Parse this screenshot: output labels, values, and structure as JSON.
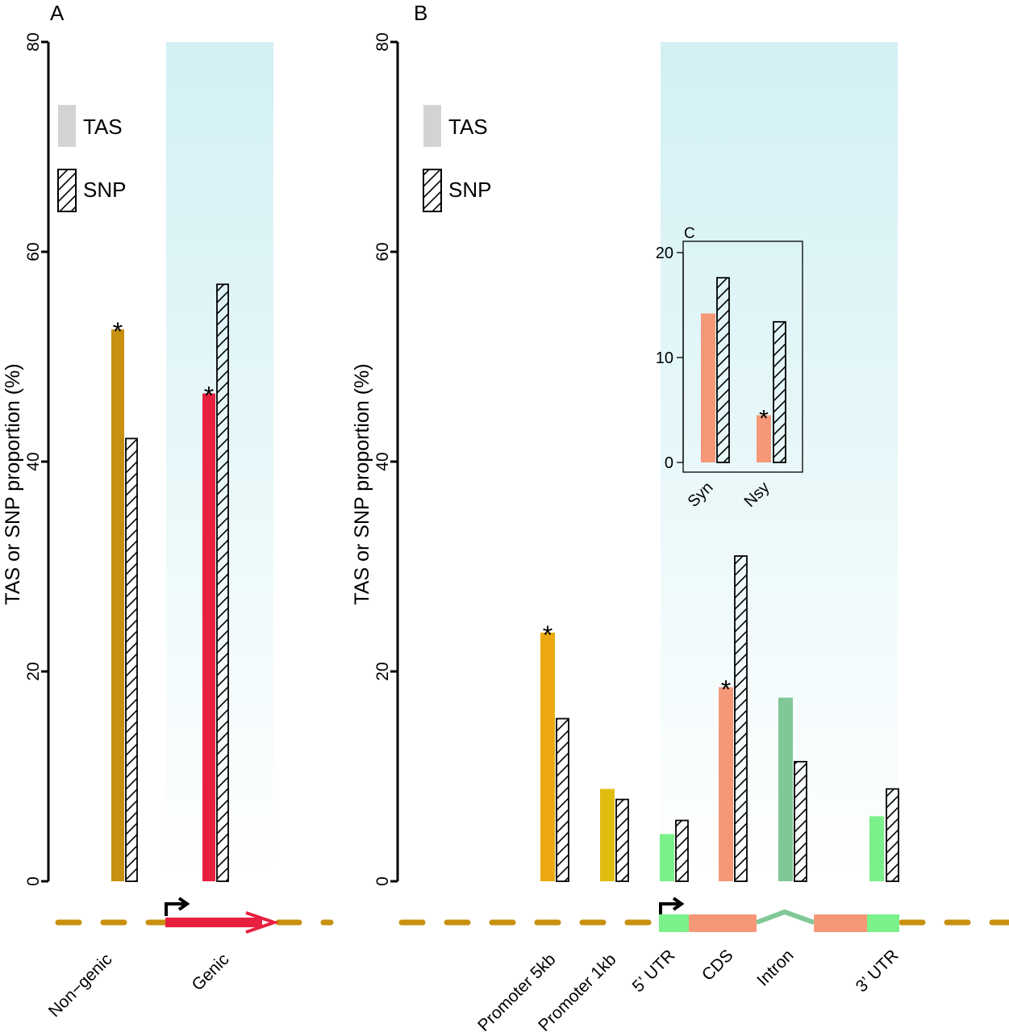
{
  "chart_data": [
    {
      "panel": "A",
      "type": "bar",
      "ylabel": "TAS or SNP proportion (%)",
      "ylim": [
        0,
        80
      ],
      "yticks": [
        "0",
        "20",
        "40",
        "60",
        "80"
      ],
      "legend": [
        "TAS",
        "SNP"
      ],
      "legend_placement": "top-left",
      "categories": [
        "Non−genic",
        "Genic"
      ],
      "series": [
        {
          "name": "TAS",
          "values": [
            52.6,
            46.5
          ],
          "colors": [
            "#C8900F",
            "#E8203F"
          ],
          "significant": [
            true,
            true
          ]
        },
        {
          "name": "SNP",
          "values": [
            42.2,
            56.9
          ],
          "pattern": "hatched"
        }
      ],
      "shaded_categories": [
        "Genic"
      ]
    },
    {
      "panel": "B",
      "type": "bar",
      "ylabel": "TAS or SNP proportion (%)",
      "ylim": [
        0,
        80
      ],
      "yticks": [
        "0",
        "20",
        "40",
        "60",
        "80"
      ],
      "legend": [
        "TAS",
        "SNP"
      ],
      "legend_placement": "top-left",
      "categories": [
        "Promoter 5kb",
        "Promoter 1kb",
        "5’ UTR",
        "CDS",
        "Intron",
        "3’ UTR"
      ],
      "series": [
        {
          "name": "TAS",
          "values": [
            23.7,
            8.8,
            4.5,
            18.5,
            17.5,
            6.2
          ],
          "colors": [
            "#EBA810",
            "#E0BE10",
            "#7CF08A",
            "#F59878",
            "#80C898",
            "#7CF08A"
          ],
          "significant": [
            true,
            false,
            false,
            true,
            false,
            false
          ]
        },
        {
          "name": "SNP",
          "values": [
            15.5,
            7.8,
            5.8,
            31.0,
            11.4,
            8.8
          ],
          "pattern": "hatched"
        }
      ],
      "shaded_categories": [
        "5’ UTR",
        "CDS",
        "Intron",
        "3’ UTR"
      ]
    },
    {
      "panel": "C",
      "type": "bar",
      "inset": true,
      "ylim": [
        0,
        20
      ],
      "yticks": [
        "0",
        "10",
        "20"
      ],
      "categories": [
        "Syn",
        "Nsy"
      ],
      "series": [
        {
          "name": "TAS",
          "values": [
            14.2,
            4.5
          ],
          "colors": [
            "#F59878",
            "#F59878"
          ],
          "significant": [
            false,
            true
          ]
        },
        {
          "name": "SNP",
          "values": [
            17.6,
            13.4
          ],
          "pattern": "hatched"
        }
      ]
    }
  ],
  "colors": {
    "shade": "#D2F0F4",
    "intergenic": "#C8900F",
    "gene": "#E8203F",
    "utr": "#7CF08A",
    "cds": "#F59878",
    "intron": "#80C898"
  }
}
